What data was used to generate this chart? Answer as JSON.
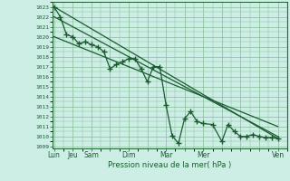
{
  "xlabel": "Pression niveau de la mer( hPa )",
  "background_color": "#cceee4",
  "grid_color": "#88bb99",
  "line_color": "#1a5c30",
  "yticks": [
    1009,
    1010,
    1011,
    1012,
    1013,
    1014,
    1015,
    1016,
    1017,
    1018,
    1019,
    1020,
    1021,
    1022,
    1023
  ],
  "ylim": [
    1008.8,
    1023.5
  ],
  "xlim": [
    -0.1,
    12.5
  ],
  "xtick_labels": [
    "Lun",
    "Jeu",
    "Sam",
    "",
    "Dim",
    "",
    "Mar",
    "",
    "Mer",
    "",
    "",
    "",
    "Ven"
  ],
  "xtick_positions": [
    0,
    1,
    2,
    3,
    4,
    5,
    6,
    7,
    8,
    9,
    10,
    11,
    12
  ],
  "series": [
    {
      "x": [
        0,
        0.33,
        0.67,
        1,
        1.33,
        1.67,
        2,
        2.33,
        2.67,
        3,
        3.33,
        3.67,
        4,
        4.33,
        4.67,
        5,
        5.33,
        5.67,
        6,
        6.33,
        6.67,
        7,
        7.33,
        7.67,
        8,
        8.5,
        9,
        9.33,
        9.67,
        10,
        10.33,
        10.67,
        11,
        11.33,
        11.67,
        12
      ],
      "y": [
        1023,
        1022,
        1020.2,
        1020,
        1019.3,
        1019.5,
        1019.2,
        1019,
        1018.5,
        1016.8,
        1017.2,
        1017.5,
        1017.8,
        1017.8,
        1016.8,
        1015.5,
        1017,
        1017,
        1013.2,
        1010.1,
        1009.3,
        1011.8,
        1012.5,
        1011.5,
        1011.3,
        1011.2,
        1009.5,
        1011.2,
        1010.5,
        1010,
        1010,
        1010.2,
        1010,
        1009.9,
        1009.9,
        1009.8
      ],
      "marker": "+",
      "markersize": 4,
      "linewidth": 0.9
    },
    {
      "x": [
        0,
        12
      ],
      "y": [
        1023,
        1009.8
      ],
      "marker": null,
      "linewidth": 0.9
    },
    {
      "x": [
        0,
        12
      ],
      "y": [
        1022,
        1010
      ],
      "marker": null,
      "linewidth": 0.9
    },
    {
      "x": [
        0,
        12
      ],
      "y": [
        1020,
        1011
      ],
      "marker": null,
      "linewidth": 0.9
    }
  ]
}
